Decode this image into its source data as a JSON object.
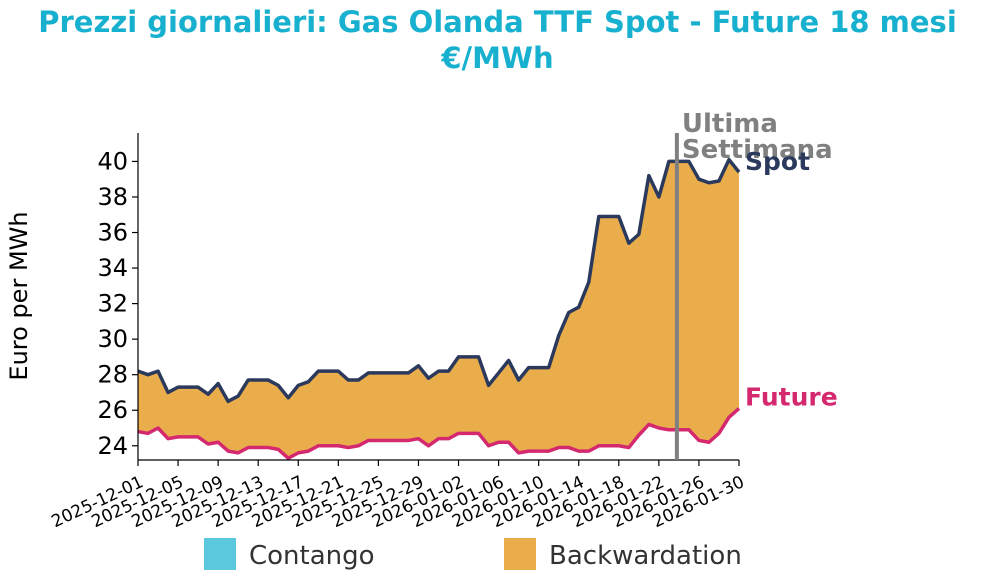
{
  "chart_data": {
    "type": "area",
    "title": "Prezzi giornalieri: Gas Olanda TTF Spot - Future 18 mesi",
    "subtitle": "€/MWh",
    "ylabel": "Euro per MWh",
    "xlabel": "",
    "ylim": [
      23.2,
      41.6
    ],
    "yticks": [
      24,
      26,
      28,
      30,
      32,
      34,
      36,
      38,
      40
    ],
    "xticks": [
      "2025-12-01",
      "2025-12-05",
      "2025-12-09",
      "2025-12-13",
      "2025-12-17",
      "2025-12-21",
      "2025-12-25",
      "2025-12-29",
      "2026-01-02",
      "2026-01-06",
      "2026-01-10",
      "2026-01-14",
      "2026-01-18",
      "2026-01-22",
      "2026-01-26",
      "2026-01-30"
    ],
    "x": [
      "2025-12-01",
      "2025-12-02",
      "2025-12-03",
      "2025-12-04",
      "2025-12-05",
      "2025-12-06",
      "2025-12-07",
      "2025-12-08",
      "2025-12-09",
      "2025-12-10",
      "2025-12-11",
      "2025-12-12",
      "2025-12-13",
      "2025-12-14",
      "2025-12-15",
      "2025-12-16",
      "2025-12-17",
      "2025-12-18",
      "2025-12-19",
      "2025-12-20",
      "2025-12-21",
      "2025-12-22",
      "2025-12-23",
      "2025-12-24",
      "2025-12-25",
      "2025-12-26",
      "2025-12-27",
      "2025-12-28",
      "2025-12-29",
      "2025-12-30",
      "2025-12-31",
      "2026-01-01",
      "2026-01-02",
      "2026-01-03",
      "2026-01-04",
      "2026-01-05",
      "2026-01-06",
      "2026-01-07",
      "2026-01-08",
      "2026-01-09",
      "2026-01-10",
      "2026-01-11",
      "2026-01-12",
      "2026-01-13",
      "2026-01-14",
      "2026-01-15",
      "2026-01-16",
      "2026-01-17",
      "2026-01-18",
      "2026-01-19",
      "2026-01-20",
      "2026-01-21",
      "2026-01-22",
      "2026-01-23",
      "2026-01-24",
      "2026-01-25",
      "2026-01-26",
      "2026-01-27",
      "2026-01-28",
      "2026-01-29",
      "2026-01-30"
    ],
    "series": [
      {
        "name": "Spot",
        "color": "#2b3a5c",
        "values": [
          28.2,
          28.0,
          28.2,
          27.0,
          27.3,
          27.3,
          27.3,
          26.9,
          27.5,
          26.5,
          26.8,
          27.7,
          27.7,
          27.7,
          27.4,
          26.7,
          27.4,
          27.6,
          28.2,
          28.2,
          28.2,
          27.7,
          27.7,
          28.1,
          28.1,
          28.1,
          28.1,
          28.1,
          28.5,
          27.8,
          28.2,
          28.2,
          29.0,
          29.0,
          29.0,
          27.4,
          28.1,
          28.8,
          27.7,
          28.4,
          28.4,
          28.4,
          30.2,
          31.5,
          31.8,
          33.2,
          36.9,
          36.9,
          36.9,
          35.4,
          35.9,
          39.2,
          38.0,
          40.0,
          40.0,
          40.0,
          39.0,
          38.8,
          38.9,
          40.1,
          39.4
        ]
      },
      {
        "name": "Future",
        "color": "#d4286f",
        "values": [
          24.8,
          24.7,
          25.0,
          24.4,
          24.5,
          24.5,
          24.5,
          24.1,
          24.2,
          23.7,
          23.6,
          23.9,
          23.9,
          23.9,
          23.8,
          23.3,
          23.6,
          23.7,
          24.0,
          24.0,
          24.0,
          23.9,
          24.0,
          24.3,
          24.3,
          24.3,
          24.3,
          24.3,
          24.4,
          24.0,
          24.4,
          24.4,
          24.7,
          24.7,
          24.7,
          24.0,
          24.2,
          24.2,
          23.6,
          23.7,
          23.7,
          23.7,
          23.9,
          23.9,
          23.7,
          23.7,
          24.0,
          24.0,
          24.0,
          23.9,
          24.6,
          25.2,
          25.0,
          24.9,
          24.9,
          24.9,
          24.3,
          24.2,
          24.7,
          25.6,
          26.1
        ]
      }
    ],
    "last_week_marker": {
      "x": "2026-01-23",
      "label_line1": "Ultima",
      "label_line2": "Settimana",
      "color": "#808080"
    },
    "legend": {
      "placement": "bottom",
      "items": [
        {
          "label": "Contango",
          "color": "#5bc8de"
        },
        {
          "label": "Backwardation",
          "color": "#eaad4c"
        }
      ]
    },
    "grid": false
  }
}
